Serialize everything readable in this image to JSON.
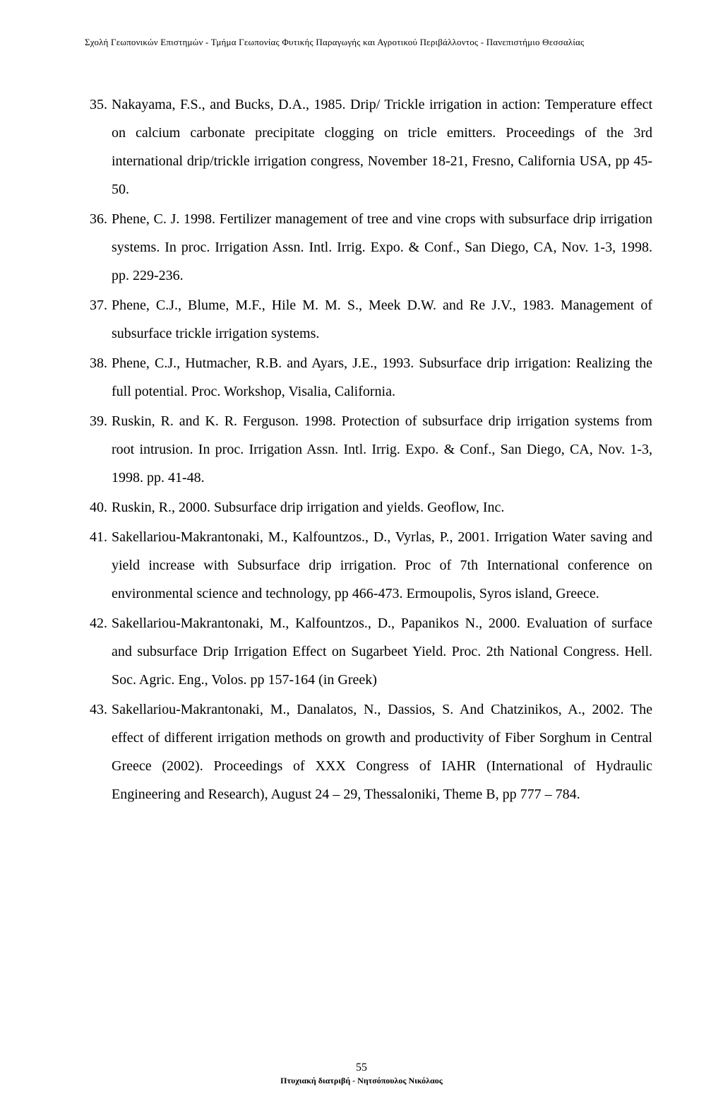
{
  "header": "Σχολή Γεωπονικών Επιστημών - Τμήμα Γεωπονίας Φυτικής Παραγωγής και Αγροτικού Περιβάλλοντος - Πανεπιστήμιο Θεσσαλίας",
  "references": [
    {
      "num": "35.",
      "text": "Nakayama, F.S., and Bucks, D.A., 1985. Drip/ Trickle irrigation in action: Temperature effect on calcium carbonate precipitate clogging on tricle emitters. Proceedings of the 3rd international drip/trickle irrigation congress, November 18-21, Fresno, California USA, pp 45-50."
    },
    {
      "num": "36.",
      "text": "Phene, C. J. 1998. Fertilizer management of tree and vine crops with subsurface drip irrigation systems. In proc. Irrigation Assn. Intl. Irrig. Expo. & Conf., San Diego, CA, Nov. 1-3, 1998. pp. 229-236."
    },
    {
      "num": "37.",
      "text": "Phene, C.J., Blume, M.F., Hile M. M. S., Meek D.W. and Re J.V., 1983. Management of subsurface trickle irrigation systems."
    },
    {
      "num": "38.",
      "text": "Phene, C.J., Hutmacher, R.B. and Ayars, J.E., 1993. Subsurface drip irrigation: Realizing the full potential. Proc. Workshop, Visalia, California."
    },
    {
      "num": "39.",
      "text": "Ruskin, R. and K. R. Ferguson. 1998. Protection of subsurface drip irrigation systems from root intrusion. In proc. Irrigation Assn. Intl. Irrig. Expo. & Conf., San Diego, CA, Nov. 1-3, 1998. pp. 41-48."
    },
    {
      "num": "40.",
      "text": "Ruskin, R., 2000. Subsurface drip irrigation and yields. Geoflow, Inc."
    },
    {
      "num": "41.",
      "text": "Sakellariou-Makrantonaki, M., Kalfountzos., D., Vyrlas, P., 2001. Irrigation Water saving and yield increase with Subsurface drip irrigation. Proc of 7th International conference on environmental science and technology, pp 466-473. Ermoupolis, Syros island, Greece."
    },
    {
      "num": "42.",
      "text": "Sakellariou-Makrantonaki, M., Kalfountzos., D., Papanikos N., 2000. Evaluation of surface and subsurface Drip Irrigation Effect on Sugarbeet Yield. Proc. 2th National Congress. Hell. Soc. Agric. Eng., Volos. pp 157-164 (in Greek)"
    },
    {
      "num": "43.",
      "text": "Sakellariou-Makrantonaki, M., Danalatos, N., Dassios, S. And Chatzinikos, A., 2002. The effect of different irrigation methods on growth and productivity of Fiber Sorghum in Central Greece (2002). Proceedings of XXX Congress of IAHR (International of Hydraulic Engineering and Research), August 24 – 29, Thessaloniki, Theme B, pp 777 – 784."
    }
  ],
  "footer": {
    "page": "55",
    "text": "Πτυχιακή διατριβή - Νητσόπουλος Νικόλαος"
  }
}
